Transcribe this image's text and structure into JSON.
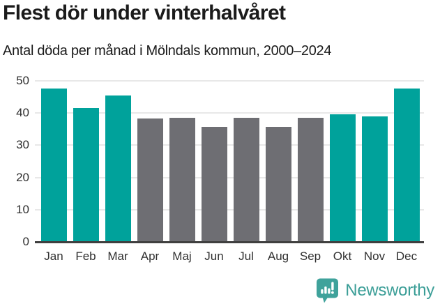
{
  "header": {
    "title": "Flest dör under vinterhalvåret",
    "subtitle": "Antal döda per månad i Mölndals kommun, 2000–2024"
  },
  "chart_data": {
    "type": "bar",
    "categories": [
      "Jan",
      "Feb",
      "Mar",
      "Apr",
      "Maj",
      "Jun",
      "Jul",
      "Aug",
      "Sep",
      "Okt",
      "Nov",
      "Dec"
    ],
    "values": [
      47.4,
      41.4,
      45.2,
      38.0,
      38.4,
      35.4,
      38.4,
      35.4,
      38.4,
      39.5,
      38.8,
      47.4
    ],
    "bar_colors": [
      "highlight",
      "highlight",
      "highlight",
      "muted",
      "muted",
      "muted",
      "muted",
      "muted",
      "muted",
      "highlight",
      "highlight",
      "highlight"
    ],
    "title": "Flest dör under vinterhalvåret",
    "subtitle": "Antal döda per månad i Mölndals kommun, 2000–2024",
    "xlabel": "",
    "ylabel": "",
    "ylim": [
      0,
      50
    ],
    "yticks": [
      0,
      10,
      20,
      30,
      40,
      50
    ],
    "grid": "horizontal-only",
    "legend": "none"
  },
  "colors": {
    "highlight": "#00a29b",
    "muted": "#6e6e73",
    "grid": "#e8e8e8",
    "axis": "#3f3f3f",
    "tick_text": "#303030",
    "title_text": "#1b1b1b",
    "brand": "#3b9e97"
  },
  "footer": {
    "brand": "Newsworthy",
    "logo_icon": "bar-chart-speech-bubble"
  }
}
